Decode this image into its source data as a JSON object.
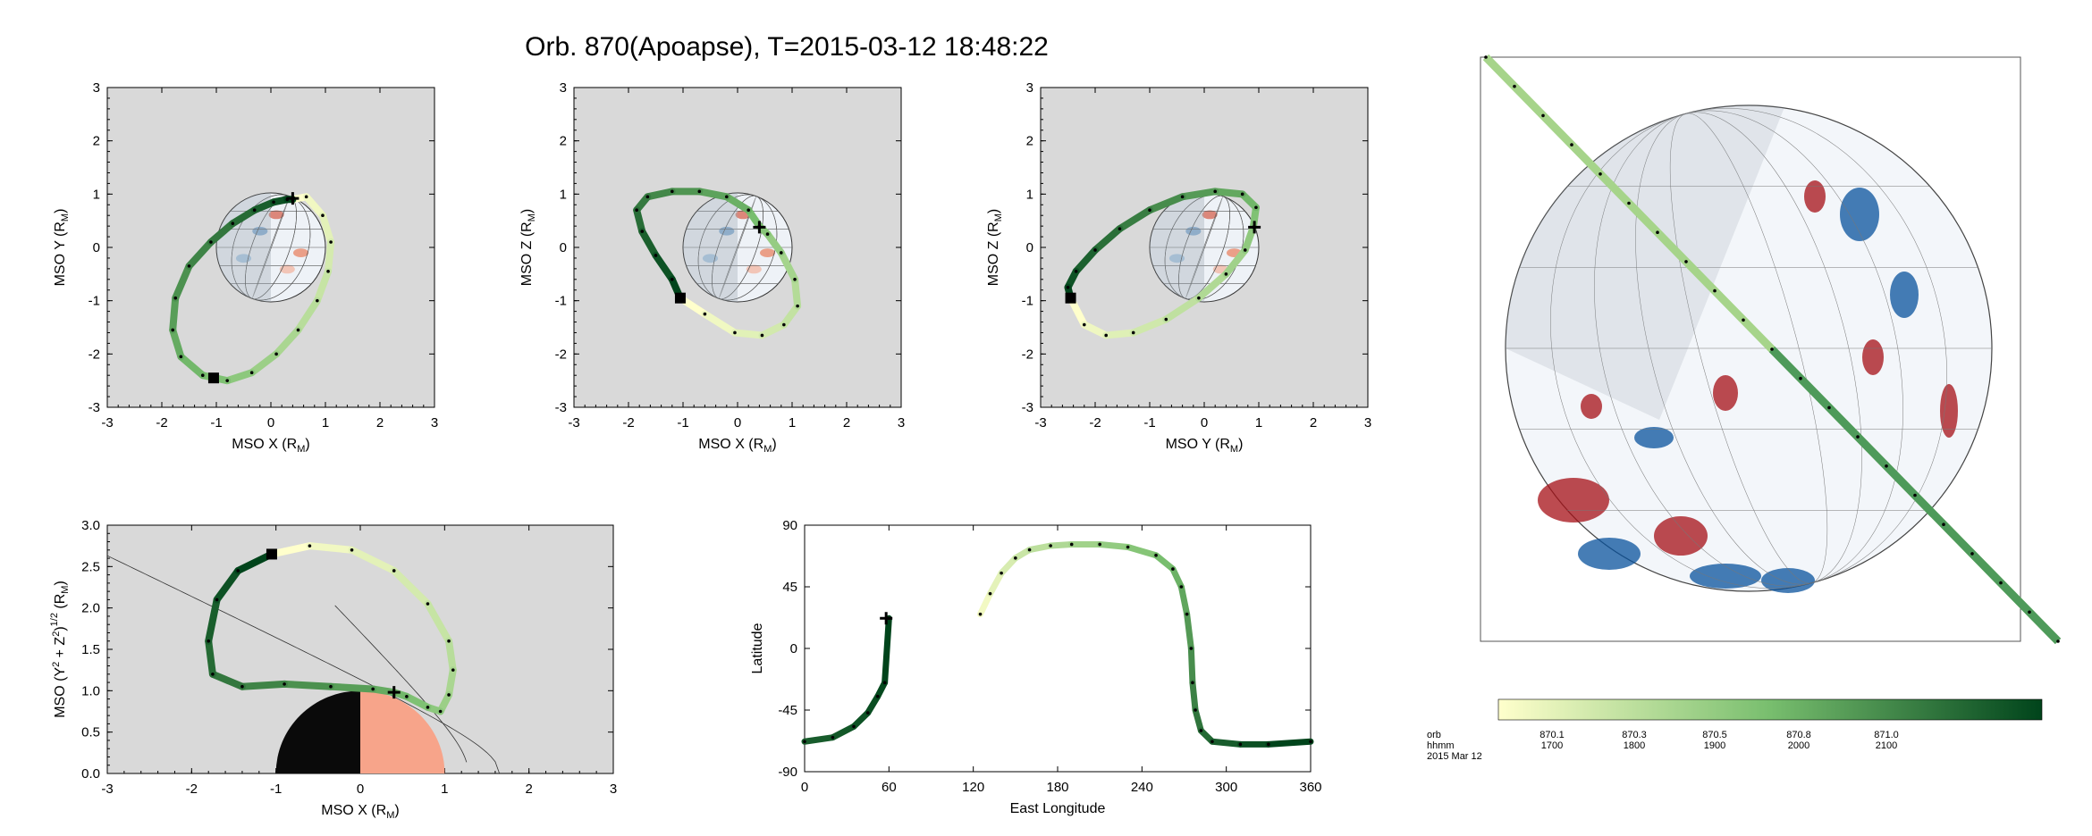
{
  "title": "Orb. 870(Apoapse), T=2015-03-12 18:48:22",
  "colors": {
    "panel_bg": "#d9d9d9",
    "orbit_start": "#ffffcc",
    "orbit_end": "#00441b",
    "planet_day": "#f7a48a",
    "planet_night": "#0a0a0a",
    "map_red": "#a50f15",
    "map_blue": "#08519c"
  },
  "chart_data": [
    {
      "type": "line",
      "panel": "xy",
      "xlabel": "MSO X  (R",
      "ylabel": "MSO Y  (R",
      "unit_sub": "M",
      "xlim": [
        -3,
        3
      ],
      "ylim": [
        -3,
        3
      ],
      "xticks": [
        "-3",
        "-2",
        "-1",
        "0",
        "1",
        "2",
        "3"
      ],
      "yticks": [
        "-3",
        "-2",
        "-1",
        "0",
        "1",
        "2",
        "3"
      ],
      "series": [
        {
          "x": [
            0.4,
            0.65,
            0.95,
            1.1,
            1.05,
            0.85,
            0.5,
            0.1,
            -0.35,
            -0.8,
            -1.25,
            -1.65,
            -1.8,
            -1.75,
            -1.5,
            -1.1,
            -0.7,
            -0.3,
            0.05,
            0.3,
            0.4
          ],
          "y": [
            0.9,
            0.95,
            0.6,
            0.1,
            -0.45,
            -1.0,
            -1.55,
            -2.0,
            -2.35,
            -2.5,
            -2.4,
            -2.05,
            -1.55,
            -0.95,
            -0.35,
            0.1,
            0.45,
            0.7,
            0.85,
            0.9,
            0.9
          ]
        }
      ],
      "start_marker": [
        -1.05,
        -2.45
      ],
      "end_marker": [
        0.4,
        0.92
      ]
    },
    {
      "type": "line",
      "panel": "xz",
      "xlabel": "MSO X  (R",
      "ylabel": "MSO Z  (R",
      "unit_sub": "M",
      "xlim": [
        -3,
        3
      ],
      "ylim": [
        -3,
        3
      ],
      "xticks": [
        "-3",
        "-2",
        "-1",
        "0",
        "1",
        "2",
        "3"
      ],
      "yticks": [
        "-3",
        "-2",
        "-1",
        "0",
        "1",
        "2",
        "3"
      ],
      "series": [
        {
          "x": [
            -1.05,
            -0.6,
            -0.05,
            0.45,
            0.85,
            1.1,
            1.05,
            0.8,
            0.55,
            0.4,
            0.2,
            -0.2,
            -0.7,
            -1.2,
            -1.65,
            -1.85,
            -1.75,
            -1.5,
            -1.2,
            -1.05
          ],
          "y": [
            -0.95,
            -1.25,
            -1.6,
            -1.65,
            -1.45,
            -1.1,
            -0.6,
            -0.1,
            0.25,
            0.4,
            0.7,
            0.95,
            1.05,
            1.05,
            0.95,
            0.7,
            0.3,
            -0.15,
            -0.6,
            -0.95
          ]
        }
      ],
      "start_marker": [
        -1.05,
        -0.95
      ],
      "end_marker": [
        0.4,
        0.38
      ]
    },
    {
      "type": "line",
      "panel": "yz",
      "xlabel": "MSO Y  (R",
      "ylabel": "MSO Z  (R",
      "unit_sub": "M",
      "xlim": [
        -3,
        3
      ],
      "ylim": [
        -3,
        3
      ],
      "xticks": [
        "-3",
        "-2",
        "-1",
        "0",
        "1",
        "2",
        "3"
      ],
      "yticks": [
        "-3",
        "-2",
        "-1",
        "0",
        "1",
        "2",
        "3"
      ],
      "series": [
        {
          "x": [
            -2.45,
            -2.2,
            -1.8,
            -1.3,
            -0.7,
            -0.1,
            0.4,
            0.75,
            0.9,
            0.95,
            0.7,
            0.2,
            -0.4,
            -1.0,
            -1.55,
            -2.0,
            -2.35,
            -2.5,
            -2.45
          ],
          "y": [
            -0.95,
            -1.45,
            -1.65,
            -1.6,
            -1.35,
            -0.95,
            -0.5,
            -0.05,
            0.38,
            0.75,
            1.0,
            1.05,
            0.95,
            0.7,
            0.35,
            -0.05,
            -0.45,
            -0.75,
            -0.95
          ]
        }
      ],
      "start_marker": [
        -2.45,
        -0.95
      ],
      "end_marker": [
        0.92,
        0.38
      ]
    },
    {
      "type": "line",
      "panel": "cyl",
      "xlabel": "MSO X  (R",
      "ylabel": "MSO (Y",
      "ylabel_rest": " + Z",
      "ylabel_tail": ")",
      "unit_sub": "M",
      "xlim": [
        -3,
        3
      ],
      "ylim": [
        0,
        3
      ],
      "xticks": [
        "-3",
        "-2",
        "-1",
        "0",
        "1",
        "2",
        "3"
      ],
      "yticks": [
        "0.0",
        "0.5",
        "1.0",
        "1.5",
        "2.0",
        "2.5",
        "3.0"
      ],
      "series": [
        {
          "x": [
            -1.05,
            -0.6,
            -0.1,
            0.4,
            0.8,
            1.05,
            1.1,
            1.05,
            0.95,
            0.8,
            0.55,
            0.4,
            0.15,
            -0.35,
            -0.9,
            -1.4,
            -1.75,
            -1.8,
            -1.7,
            -1.45,
            -1.05
          ],
          "y": [
            2.65,
            2.75,
            2.7,
            2.45,
            2.05,
            1.6,
            1.25,
            0.95,
            0.75,
            0.8,
            0.93,
            0.98,
            1.02,
            1.05,
            1.08,
            1.05,
            1.2,
            1.6,
            2.1,
            2.45,
            2.65
          ]
        }
      ],
      "start_marker": [
        -1.05,
        2.65
      ],
      "end_marker": [
        0.4,
        0.98
      ]
    },
    {
      "type": "line",
      "panel": "map",
      "xlabel": "East Longitude",
      "ylabel": "Latitude",
      "xlim": [
        0,
        360
      ],
      "ylim": [
        -90,
        90
      ],
      "xticks": [
        "0",
        "60",
        "120",
        "180",
        "240",
        "300",
        "360"
      ],
      "yticks": [
        "-90",
        "-45",
        "0",
        "45",
        "90"
      ],
      "series": [
        {
          "x": [
            0,
            20,
            35,
            45,
            52,
            57,
            60
          ],
          "y": [
            -68,
            -65,
            -57,
            -47,
            -35,
            -25,
            22
          ]
        },
        {
          "x": [
            125,
            132,
            140,
            150,
            160,
            175,
            190,
            210,
            230,
            250,
            262,
            268,
            272,
            275,
            276,
            278,
            282,
            290,
            310,
            330,
            360
          ],
          "y": [
            25,
            40,
            55,
            66,
            72,
            75,
            76,
            76,
            74,
            68,
            58,
            45,
            25,
            0,
            -25,
            -45,
            -60,
            -68,
            -70,
            -70,
            -68
          ]
        }
      ],
      "end_marker": [
        58,
        22
      ]
    }
  ],
  "colorbar": {
    "row_labels": [
      "orb",
      "hhmm",
      "2015 Mar 12"
    ],
    "orb_ticks": [
      "870.1",
      "870.3",
      "870.5",
      "870.8",
      "871.0"
    ],
    "hhmm_ticks": [
      "1700",
      "1800",
      "1900",
      "2000",
      "2100"
    ]
  }
}
